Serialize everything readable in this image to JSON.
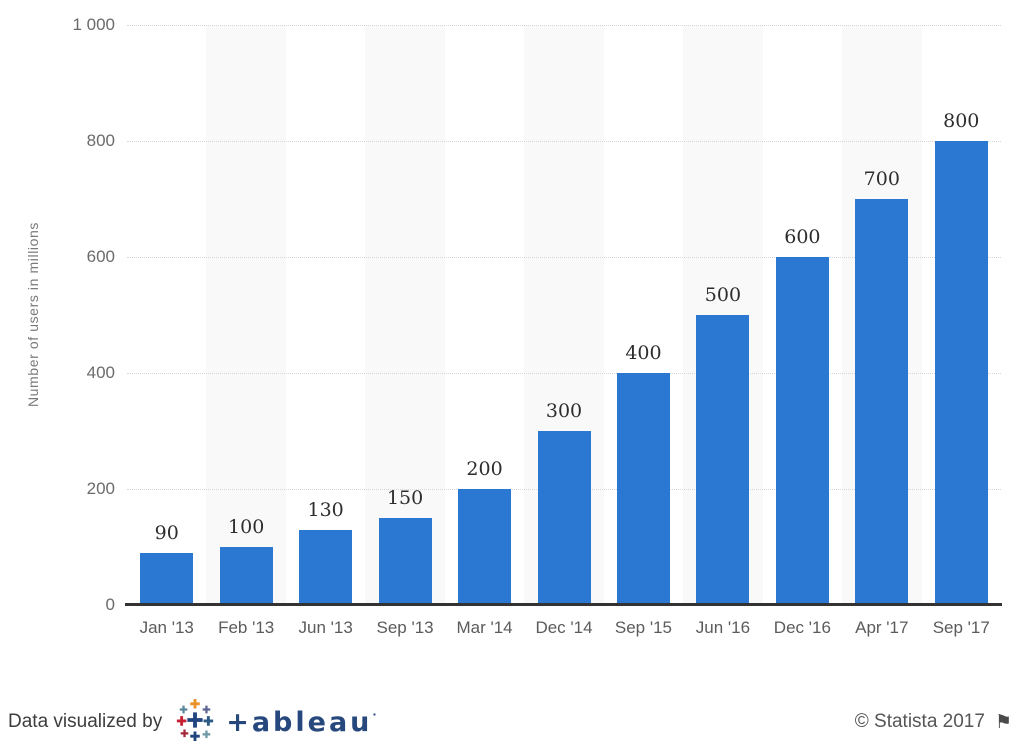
{
  "chart_data": {
    "type": "bar",
    "categories": [
      "Jan '13",
      "Feb '13",
      "Jun '13",
      "Sep '13",
      "Mar '14",
      "Dec '14",
      "Sep '15",
      "Jun '16",
      "Dec '16",
      "Apr '17",
      "Sep '17"
    ],
    "values": [
      90,
      100,
      130,
      150,
      200,
      300,
      400,
      500,
      600,
      700,
      800
    ],
    "title": "",
    "xlabel": "",
    "ylabel": "Number of users in millions",
    "ylim": [
      0,
      1000
    ],
    "yticks": [
      0,
      200,
      400,
      600,
      800,
      1000
    ],
    "ytick_labels": [
      "0",
      "200",
      "400",
      "600",
      "800",
      "1 000"
    ],
    "grid": "horizontal-dotted",
    "legend": "none",
    "colors": {
      "bar": "#2b78d3",
      "band": "#f9f9f9",
      "gridline": "#d6d6d6",
      "axis_line": "#333333",
      "tick_label": "#6b6b6b",
      "data_label": "#2d2d2d"
    }
  },
  "footer": {
    "attribution_text": "Data visualized by",
    "tableau_wordmark": "+ableau",
    "tableau_trademark_dot": "·",
    "copyright_text": "© Statista 2017",
    "flag_icon": "⚑"
  }
}
